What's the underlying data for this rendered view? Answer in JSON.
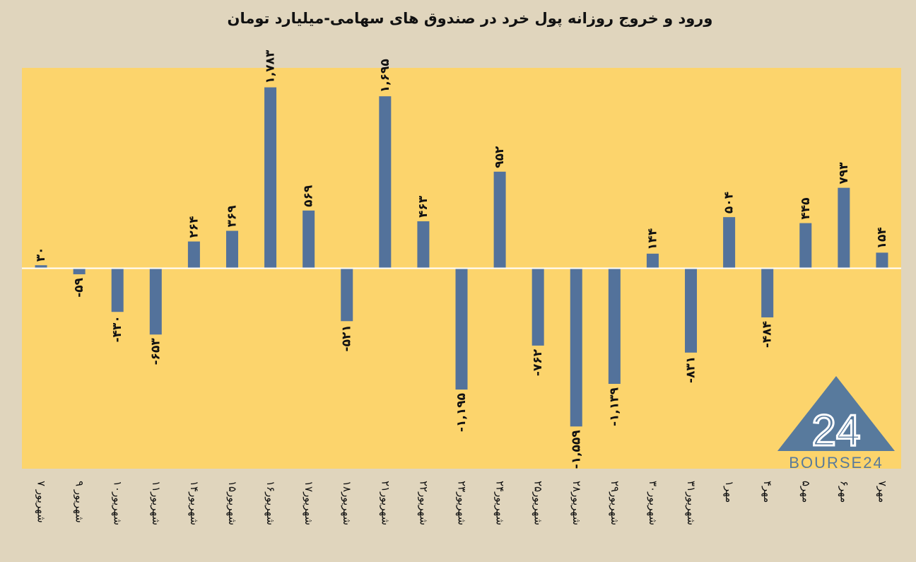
{
  "title": "ورود و خروج روزانه پول خرد در صندوق های سهامی-میلیارد تومان",
  "colors": {
    "background": "#e0d5bd",
    "plot_area": "#fcd46c",
    "bar": "#53729b",
    "logo": "#587a9d"
  },
  "logo": {
    "text": "BOURSE24",
    "mark": "24"
  },
  "chart_data": {
    "type": "bar",
    "title": "ورود و خروج روزانه پول خرد در صندوق های سهامی-میلیارد تومان",
    "xlabel": "",
    "ylabel": "",
    "grid": false,
    "legend": "none",
    "ylim": [
      -1975,
      1975
    ],
    "categories": [
      "۷ شهریور",
      "۹ شهریور",
      "۱۰شهریور",
      "۱۱شهریور",
      "۱۴شهریور",
      "۱۵شهریور",
      "۱۶شهریور",
      "۱۷شهریور",
      "۱۸شهریور",
      "۲۱شهریور",
      "۲۲شهریور",
      "۲۳شهریور",
      "۲۴شهریور",
      "۲۵شهریور",
      "۲۸شهریور",
      "۲۹شهریور",
      "۳۰شهریور",
      "۳۱شهریور",
      "۱مهر",
      "۴مهر",
      "۵مهر",
      "۶مهر",
      "۷مهر"
    ],
    "values": [
      30,
      -59,
      -430,
      -653,
      264,
      369,
      1783,
      569,
      -521,
      1695,
      463,
      -1195,
      952,
      -762,
      -1559,
      -1139,
      144,
      -831,
      504,
      -484,
      445,
      793,
      154
    ],
    "value_labels": [
      "۳۰",
      "-۵۹",
      "-۴۳۰",
      "-۶۵۳",
      "۲۶۴",
      "۳۶۹",
      "۱,۷۸۳",
      "۵۶۹",
      "-۵۲۱",
      "۱,۶۹۵",
      "۴۶۳",
      "-۱,۱۹۵",
      "۹۵۲",
      "-۷۶۲",
      "-۱,۵۵۹",
      "-۱,۱۳۹",
      "۱۴۴",
      "-۸۳۱",
      "۵۰۴",
      "-۴۸۴",
      "۴۴۵",
      "۷۹۳",
      "۱۵۴"
    ]
  }
}
